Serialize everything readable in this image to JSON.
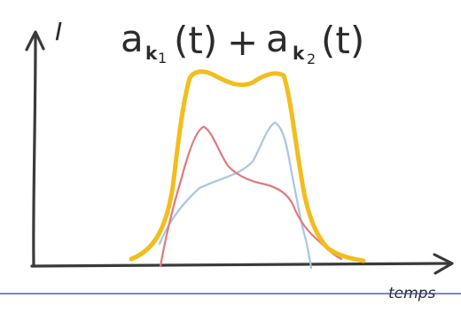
{
  "figure": {
    "y_axis_label": "I",
    "x_axis_label": "temps",
    "formula": {
      "term1_base": "a",
      "term1_sub": "k",
      "term1_subsub": "1",
      "term1_arg": "(t)",
      "operator": "+",
      "term2_base": "a",
      "term2_sub": "k",
      "term2_subsub": "2",
      "term2_arg": "(t)"
    }
  },
  "colors": {
    "axis": "#3a3a3a",
    "sum_curve": "#f2bd1d",
    "curve_k1": "#e07a7a",
    "curve_k2": "#a9c6e3",
    "separator": "#2a3fb5"
  }
}
